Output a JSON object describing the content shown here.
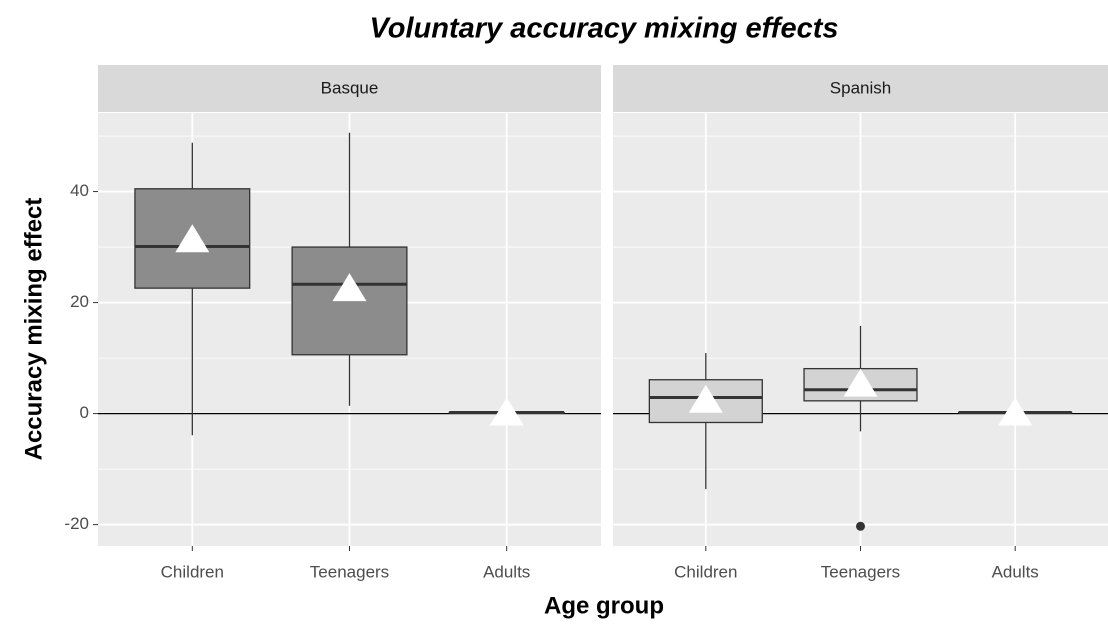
{
  "chart_data": {
    "type": "box",
    "title": "Voluntary accuracy mixing effects",
    "x_label": "Age group",
    "y_label": "Accuracy mixing effect",
    "categories": [
      "Children",
      "Teenagers",
      "Adults"
    ],
    "ylim": [
      -23.85,
      54.15
    ],
    "yticks": [
      -20,
      0,
      20,
      40
    ],
    "minor_yticks": [
      -10,
      10,
      30,
      50
    ],
    "grid": true,
    "hline": 0,
    "panels": [
      {
        "name": "Basque",
        "color": "#8c8c8c",
        "boxes": [
          {
            "min": -3.9,
            "q1": 22.6,
            "median": 30.1,
            "q3": 40.5,
            "max": 48.8,
            "mean": 31.4
          },
          {
            "min": 1.4,
            "q1": 10.6,
            "median": 23.3,
            "q3": 30,
            "max": 50.6,
            "mean": 22.6
          },
          {
            "min": 0.2,
            "q1": 0.2,
            "median": 0.2,
            "q3": 0.2,
            "max": 0.2,
            "mean": 0.2
          }
        ]
      },
      {
        "name": "Spanish",
        "color": "#d3d3d3",
        "boxes": [
          {
            "min": -13.6,
            "q1": -1.6,
            "median": 2.9,
            "q3": 6.1,
            "max": 10.9,
            "mean": 2.5
          },
          {
            "min": -3.2,
            "q1": 2.3,
            "median": 4.3,
            "q3": 8.1,
            "max": 15.8,
            "mean": 5.4,
            "outliers": [
              -20.3
            ]
          },
          {
            "min": 0.2,
            "q1": 0.2,
            "median": 0.2,
            "q3": 0.2,
            "max": 0.2,
            "mean": 0.2
          }
        ]
      }
    ]
  }
}
